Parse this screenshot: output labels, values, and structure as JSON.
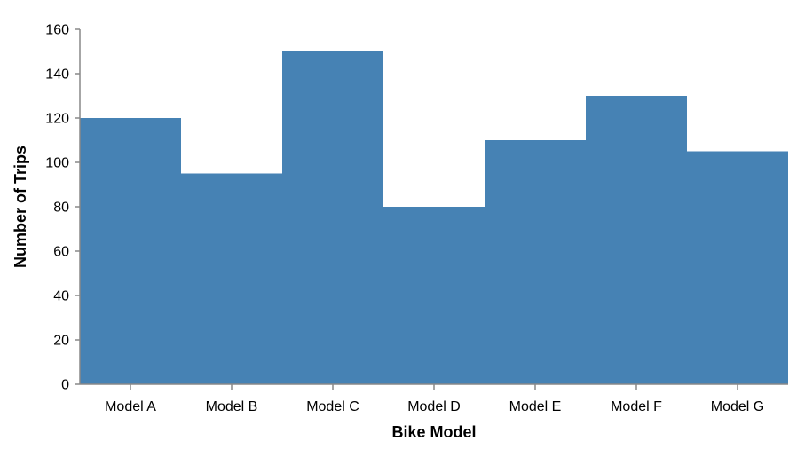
{
  "chart_data": {
    "type": "bar",
    "categories": [
      "Model A",
      "Model B",
      "Model C",
      "Model D",
      "Model E",
      "Model F",
      "Model G"
    ],
    "values": [
      120,
      95,
      150,
      80,
      110,
      130,
      105
    ],
    "xlabel": "Bike Model",
    "ylabel": "Number of Trips",
    "ylim": [
      0,
      160
    ],
    "yticks": [
      0,
      20,
      40,
      60,
      80,
      100,
      120,
      140,
      160
    ],
    "grid": false,
    "bar_color": "#4682b4",
    "axis_color": "#888888"
  }
}
